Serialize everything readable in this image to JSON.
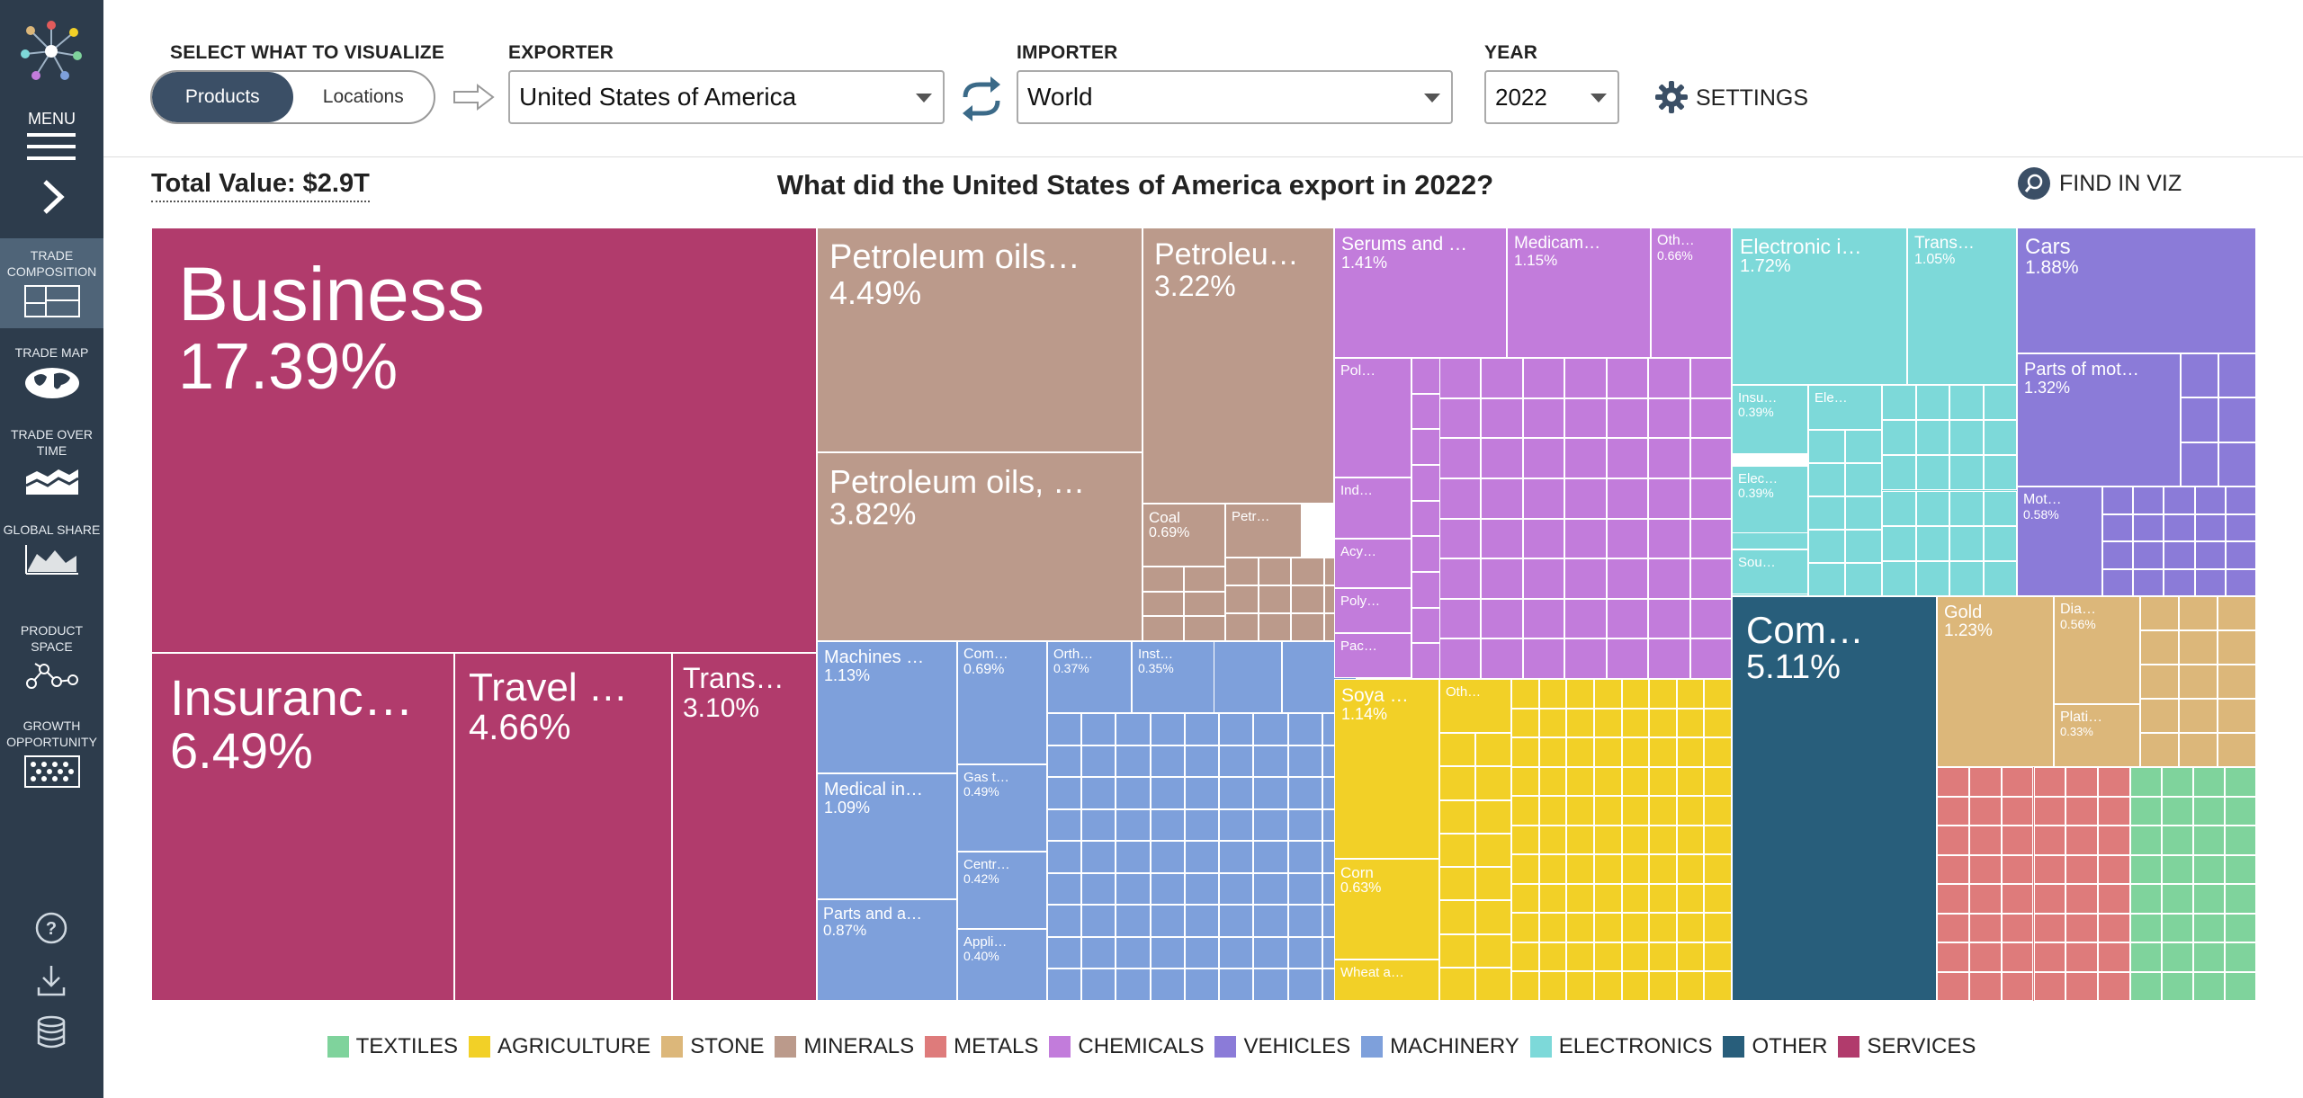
{
  "sidebar": {
    "menu_label": "MENU",
    "nav": [
      {
        "label": "TRADE COMPOSITION",
        "icon": "treemap-icon",
        "active": true
      },
      {
        "label": "TRADE MAP",
        "icon": "globe-icon"
      },
      {
        "label": "TRADE OVER TIME",
        "icon": "stacked-area-icon"
      },
      {
        "label": "GLOBAL SHARE",
        "icon": "area-chart-icon"
      },
      {
        "label": "PRODUCT SPACE",
        "icon": "network-icon"
      },
      {
        "label": "GROWTH OPPORTUNITY",
        "icon": "dot-grid-icon"
      }
    ],
    "bottom_icons": [
      "help-icon",
      "download-icon",
      "database-icon"
    ]
  },
  "controls": {
    "visualize_label": "SELECT WHAT TO VISUALIZE",
    "toggle": [
      "Products",
      "Locations"
    ],
    "toggle_selected": "Products",
    "exporter_label": "EXPORTER",
    "exporter_value": "United States of America",
    "importer_label": "IMPORTER",
    "importer_value": "World",
    "year_label": "YEAR",
    "year_value": "2022",
    "settings_label": "SETTINGS"
  },
  "header": {
    "total_value": "Total Value: $2.9T",
    "title": "What did the United States of America export in 2022?",
    "find_label": "FIND IN VIZ"
  },
  "colors": {
    "textiles": "#7fd39c",
    "agriculture": "#f2d027",
    "stone": "#dcb77a",
    "minerals": "#bb9a8b",
    "metals": "#de7b7b",
    "chemicals": "#c27cdb",
    "vehicles": "#8b7bd8",
    "machinery": "#7ea0db",
    "electronics": "#7dd9d9",
    "other": "#285e7b",
    "services": "#b13b6c"
  },
  "legend": [
    {
      "label": "TEXTILES",
      "color": "#7fd39c"
    },
    {
      "label": "AGRICULTURE",
      "color": "#f2d027"
    },
    {
      "label": "STONE",
      "color": "#dcb77a"
    },
    {
      "label": "MINERALS",
      "color": "#bb9a8b"
    },
    {
      "label": "METALS",
      "color": "#de7b7b"
    },
    {
      "label": "CHEMICALS",
      "color": "#c27cdb"
    },
    {
      "label": "VEHICLES",
      "color": "#8b7bd8"
    },
    {
      "label": "MACHINERY",
      "color": "#7ea0db"
    },
    {
      "label": "ELECTRONICS",
      "color": "#7dd9d9"
    },
    {
      "label": "OTHER",
      "color": "#285e7b"
    },
    {
      "label": "SERVICES",
      "color": "#b13b6c"
    }
  ],
  "treemap_labels": [
    {
      "name": "Business",
      "share": "17.39%",
      "sector": "services"
    },
    {
      "name": "Insuranc…",
      "share": "6.49%",
      "sector": "services"
    },
    {
      "name": "Travel …",
      "share": "4.66%",
      "sector": "services"
    },
    {
      "name": "Trans…",
      "share": "3.10%",
      "sector": "services"
    },
    {
      "name": "Petroleum oils…",
      "share": "4.49%",
      "sector": "minerals"
    },
    {
      "name": "Petroleu…",
      "share": "3.22%",
      "sector": "minerals"
    },
    {
      "name": "Petroleum oils, …",
      "share": "3.82%",
      "sector": "minerals"
    },
    {
      "name": "Coal",
      "share": "0.69%",
      "sector": "minerals"
    },
    {
      "name": "Petr…",
      "share": "",
      "sector": "minerals"
    },
    {
      "name": "Machines …",
      "share": "1.13%",
      "sector": "machinery"
    },
    {
      "name": "Com…",
      "share": "0.69%",
      "sector": "machinery"
    },
    {
      "name": "Orth…",
      "share": "0.37%",
      "sector": "machinery"
    },
    {
      "name": "Inst…",
      "share": "0.35%",
      "sector": "machinery"
    },
    {
      "name": "Medical in…",
      "share": "1.09%",
      "sector": "machinery"
    },
    {
      "name": "Gas t…",
      "share": "0.49%",
      "sector": "machinery"
    },
    {
      "name": "Centr…",
      "share": "0.42%",
      "sector": "machinery"
    },
    {
      "name": "Parts and a…",
      "share": "0.87%",
      "sector": "machinery"
    },
    {
      "name": "Appli…",
      "share": "0.40%",
      "sector": "machinery"
    },
    {
      "name": "Serums and …",
      "share": "1.41%",
      "sector": "chemicals"
    },
    {
      "name": "Medicam…",
      "share": "1.15%",
      "sector": "chemicals"
    },
    {
      "name": "Oth…",
      "share": "0.66%",
      "sector": "chemicals"
    },
    {
      "name": "Pol…",
      "share": "",
      "sector": "chemicals"
    },
    {
      "name": "Ind…",
      "share": "",
      "sector": "chemicals"
    },
    {
      "name": "Acy…",
      "share": "",
      "sector": "chemicals"
    },
    {
      "name": "Poly…",
      "share": "",
      "sector": "chemicals"
    },
    {
      "name": "Pac…",
      "share": "",
      "sector": "chemicals"
    },
    {
      "name": "Soya …",
      "share": "1.14%",
      "sector": "agriculture"
    },
    {
      "name": "Oth…",
      "share": "",
      "sector": "agriculture"
    },
    {
      "name": "Corn",
      "share": "0.63%",
      "sector": "agriculture"
    },
    {
      "name": "Wheat a…",
      "share": "",
      "sector": "agriculture"
    },
    {
      "name": "Electronic i…",
      "share": "1.72%",
      "sector": "electronics"
    },
    {
      "name": "Trans…",
      "share": "1.05%",
      "sector": "electronics"
    },
    {
      "name": "Insu…",
      "share": "0.39%",
      "sector": "electronics"
    },
    {
      "name": "Ele…",
      "share": "",
      "sector": "electronics"
    },
    {
      "name": "Elec…",
      "share": "0.39%",
      "sector": "electronics"
    },
    {
      "name": "Sou…",
      "share": "",
      "sector": "electronics"
    },
    {
      "name": "Cars",
      "share": "1.88%",
      "sector": "vehicles"
    },
    {
      "name": "Parts of mot…",
      "share": "1.32%",
      "sector": "vehicles"
    },
    {
      "name": "Mot…",
      "share": "0.58%",
      "sector": "vehicles"
    },
    {
      "name": "Com…",
      "share": "5.11%",
      "sector": "other"
    },
    {
      "name": "Gold",
      "share": "1.23%",
      "sector": "stone"
    },
    {
      "name": "Dia…",
      "share": "0.56%",
      "sector": "stone"
    },
    {
      "name": "Plati…",
      "share": "0.33%",
      "sector": "stone"
    }
  ]
}
